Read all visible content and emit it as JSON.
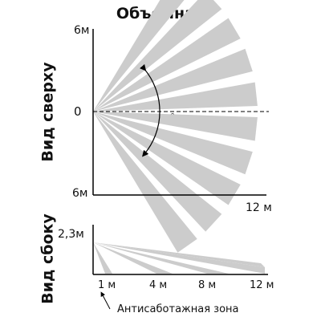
{
  "diagram": {
    "title": "Объемная",
    "top_view": {
      "label": "Вид сверху",
      "y_top": "6м",
      "y_center": "0",
      "y_bottom": "6м",
      "x_end": "12 м",
      "angle_value": "90",
      "angle_unit": "0"
    },
    "side_view": {
      "label": "Вид сбоку",
      "height": "2,3м",
      "ticks": [
        "1 м",
        "4 м",
        "8 м",
        "12 м"
      ],
      "anti_sabotage": "Антисаботажная зона"
    },
    "colors": {
      "beam": "#cccccc",
      "axis": "#000000"
    }
  }
}
